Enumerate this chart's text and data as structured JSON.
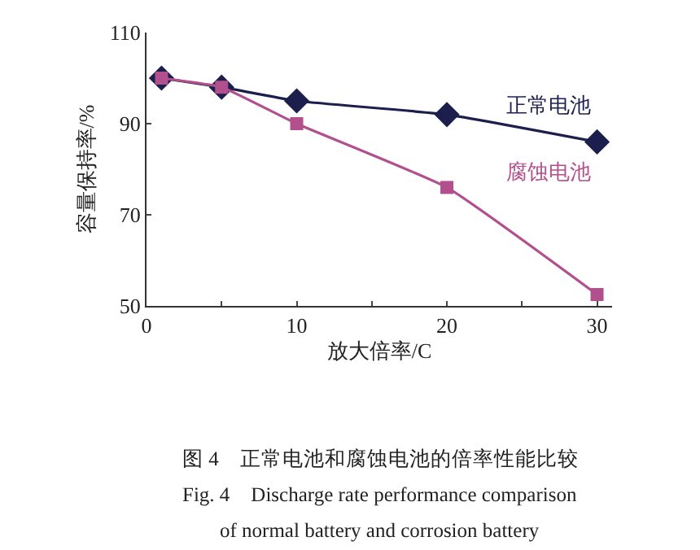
{
  "chart_data": {
    "type": "line",
    "xlabel": "放大倍率/C",
    "ylabel": "容量保持率/%",
    "xlim": [
      0,
      31
    ],
    "xticks": [
      0,
      {
        "value": 5,
        "label": null
      },
      10,
      {
        "value": 15,
        "label": null
      },
      20,
      {
        "value": 25,
        "label": null
      },
      30
    ],
    "ylim": [
      50,
      110
    ],
    "yticks": [
      50,
      70,
      90,
      110
    ],
    "grid": false,
    "legend": false,
    "x": [
      1,
      5,
      10,
      20,
      30
    ],
    "series": [
      {
        "name": "正常电池",
        "color": "#1c1f4e",
        "marker": "diamond",
        "values": [
          100,
          98,
          95,
          92,
          86
        ]
      },
      {
        "name": "腐蚀电池",
        "color": "#b2508e",
        "marker": "square",
        "values": [
          100,
          98,
          90,
          76,
          52.5
        ]
      }
    ],
    "annotations": [
      "图 4　正常电池和腐蚀电池的倍率性能比较",
      "Fig. 4　Discharge rate performance comparison",
      "of normal battery and corrosion battery"
    ]
  }
}
